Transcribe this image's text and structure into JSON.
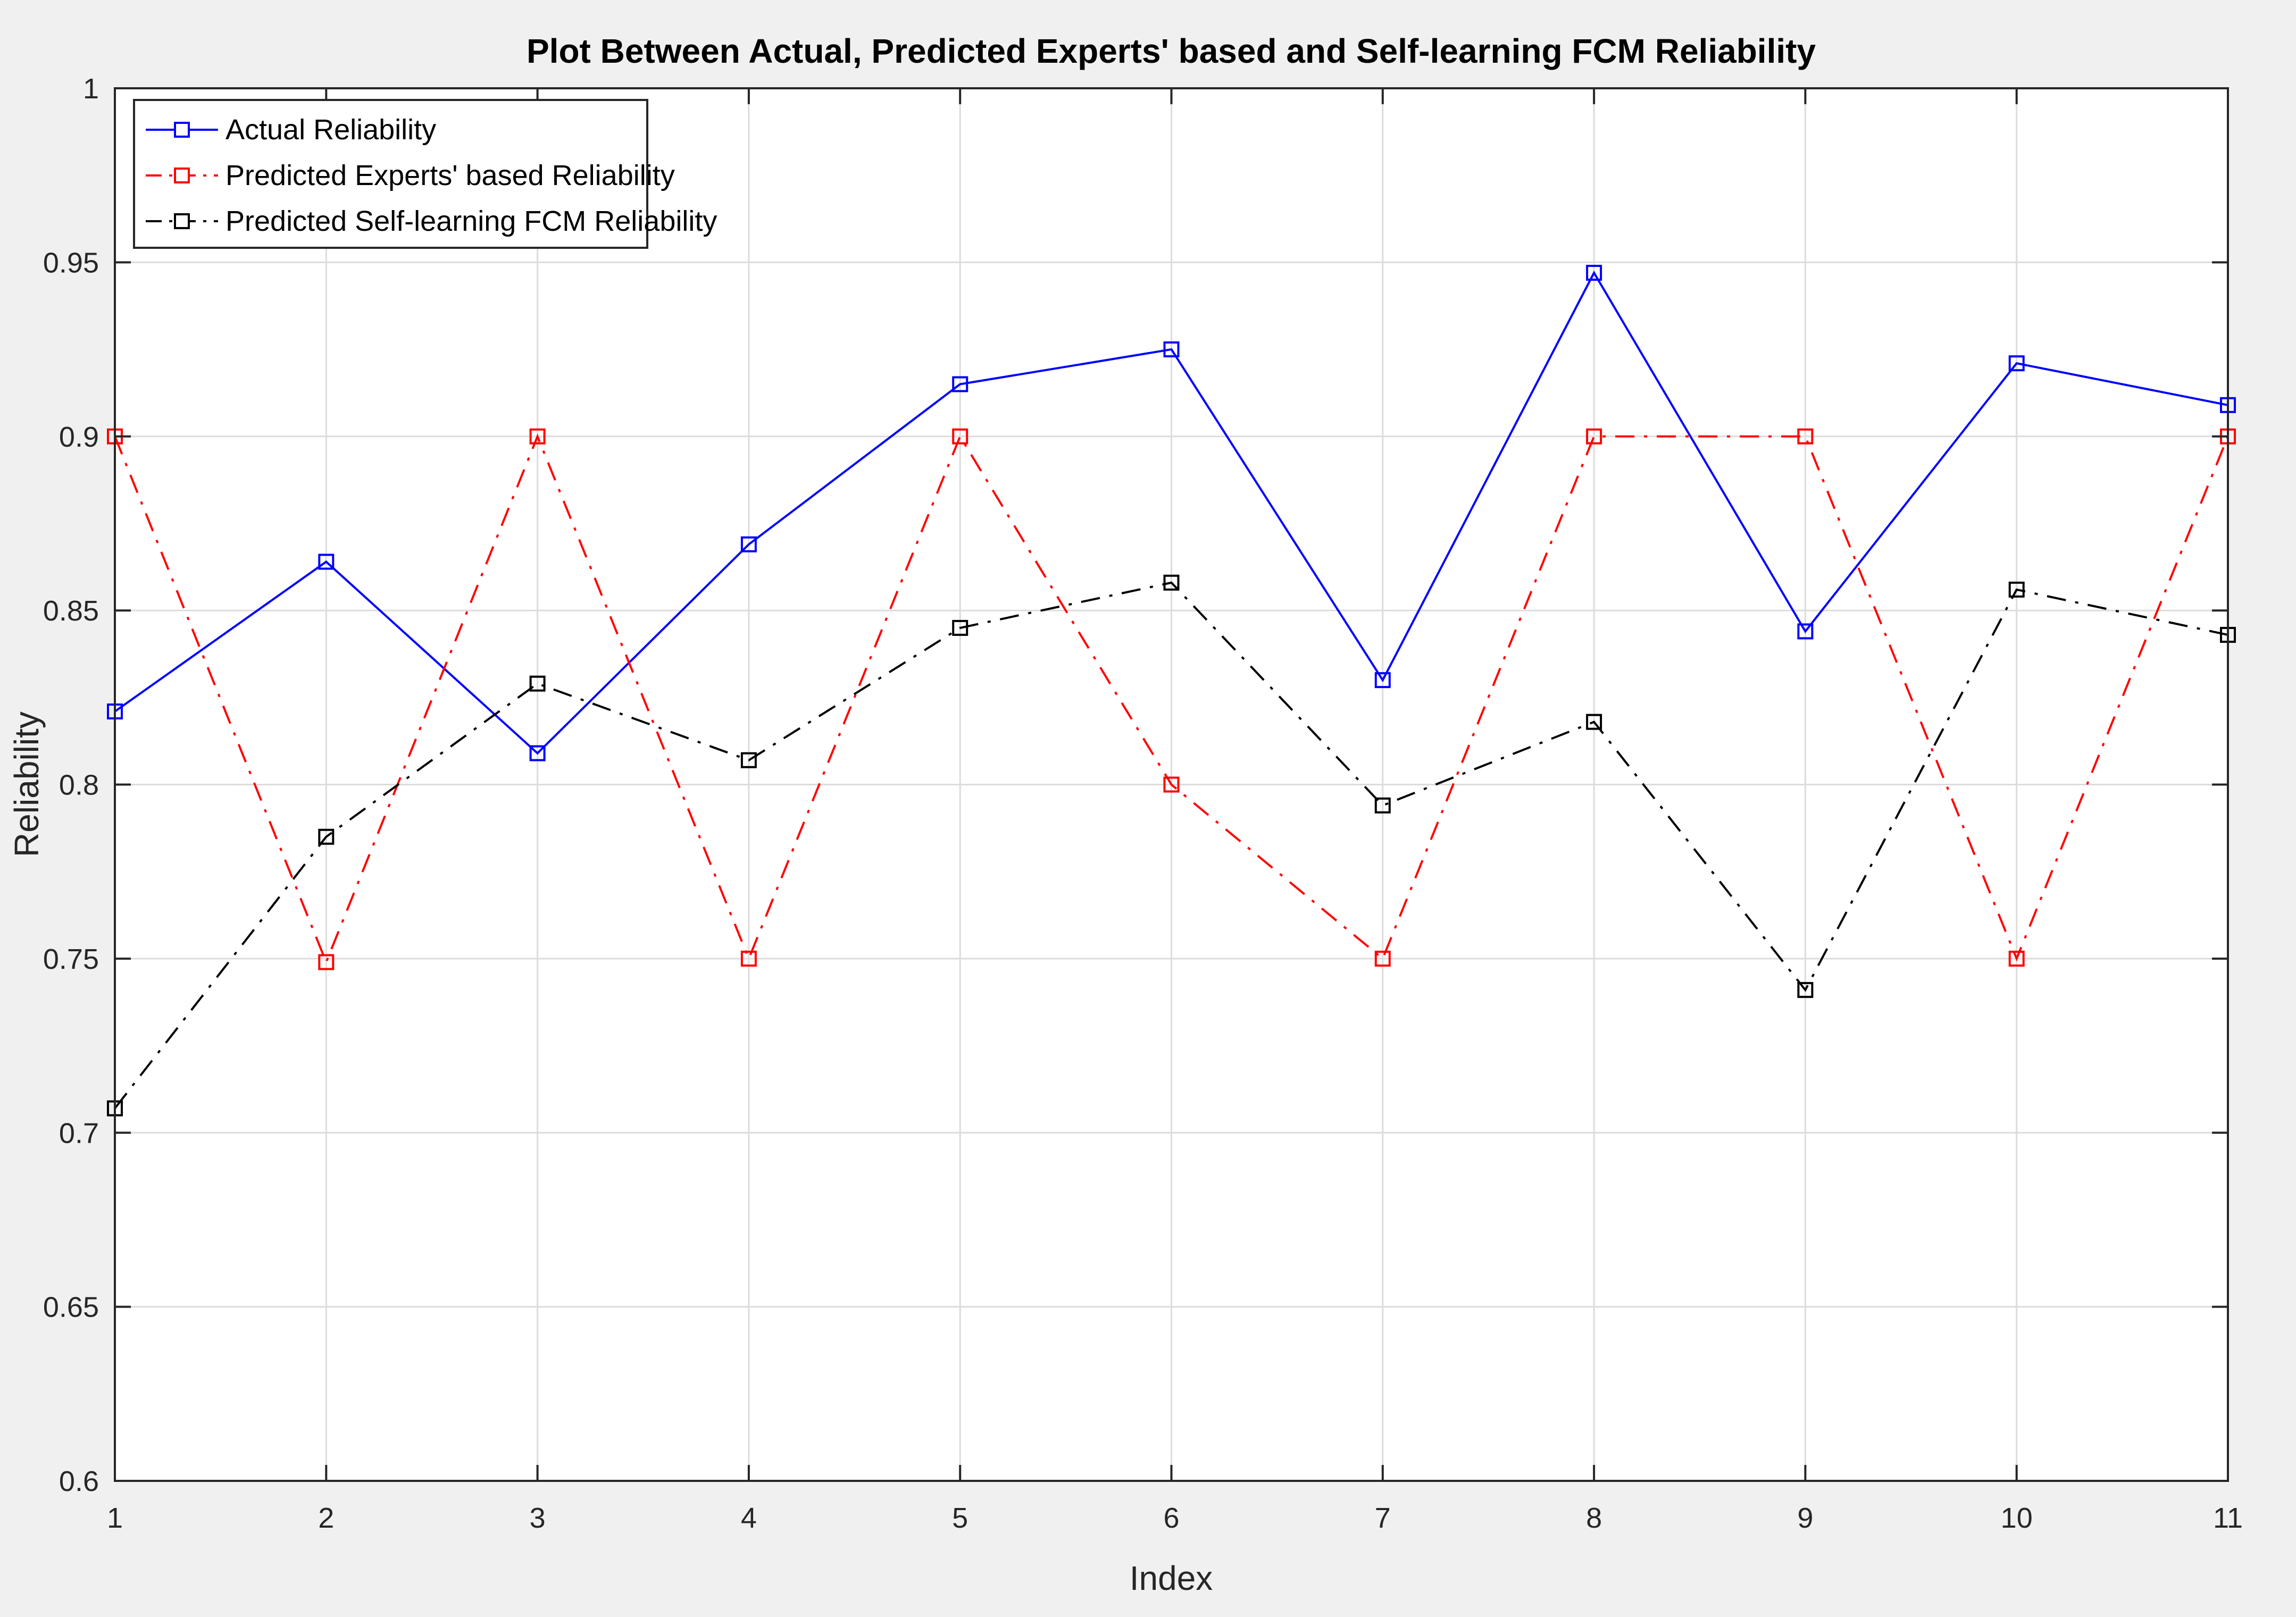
{
  "window": {
    "background": "#f0f0f0"
  },
  "chart_data": {
    "type": "line",
    "title": "Plot Between Actual, Predicted Experts' based and Self-learning FCM Reliability",
    "xlabel": "Index",
    "ylabel": "Reliability",
    "x": [
      1,
      2,
      3,
      4,
      5,
      6,
      7,
      8,
      9,
      10,
      11
    ],
    "xlim": [
      1,
      11
    ],
    "ylim": [
      0.6,
      1
    ],
    "xticks": [
      "1",
      "2",
      "3",
      "4",
      "5",
      "6",
      "7",
      "8",
      "9",
      "10",
      "11"
    ],
    "yticks": [
      "0.6",
      "0.65",
      "0.7",
      "0.75",
      "0.8",
      "0.85",
      "0.9",
      "0.95",
      "1"
    ],
    "grid": true,
    "legend_position": "top-left",
    "series": [
      {
        "name": "Actual Reliability",
        "color": "#0000ff",
        "line_style": "solid",
        "marker": "square",
        "values": [
          0.821,
          0.864,
          0.809,
          0.869,
          0.915,
          0.925,
          0.83,
          0.947,
          0.844,
          0.921,
          0.909
        ]
      },
      {
        "name": "Predicted Experts' based Reliability",
        "color": "#ff0000",
        "line_style": "dash-dot",
        "marker": "square",
        "values": [
          0.9,
          0.749,
          0.9,
          0.75,
          0.9,
          0.8,
          0.75,
          0.9,
          0.9,
          0.75,
          0.9
        ]
      },
      {
        "name": "Predicted Self-learning FCM Reliability",
        "color": "#000000",
        "line_style": "dash-dot",
        "marker": "square",
        "values": [
          0.707,
          0.785,
          0.829,
          0.807,
          0.845,
          0.858,
          0.794,
          0.818,
          0.741,
          0.856,
          0.843
        ]
      }
    ]
  }
}
